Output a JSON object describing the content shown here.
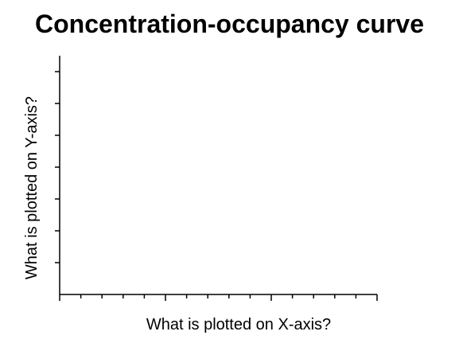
{
  "chart_data": {
    "type": "line",
    "title": "Concentration-occupancy curve",
    "xlabel": "What is plotted on X-axis?",
    "ylabel": "What is plotted on Y-axis?",
    "series": [],
    "grid": false,
    "legend": "none",
    "x_minor_ticks": 15,
    "x_major_every": 5,
    "y_ticks": 7
  }
}
